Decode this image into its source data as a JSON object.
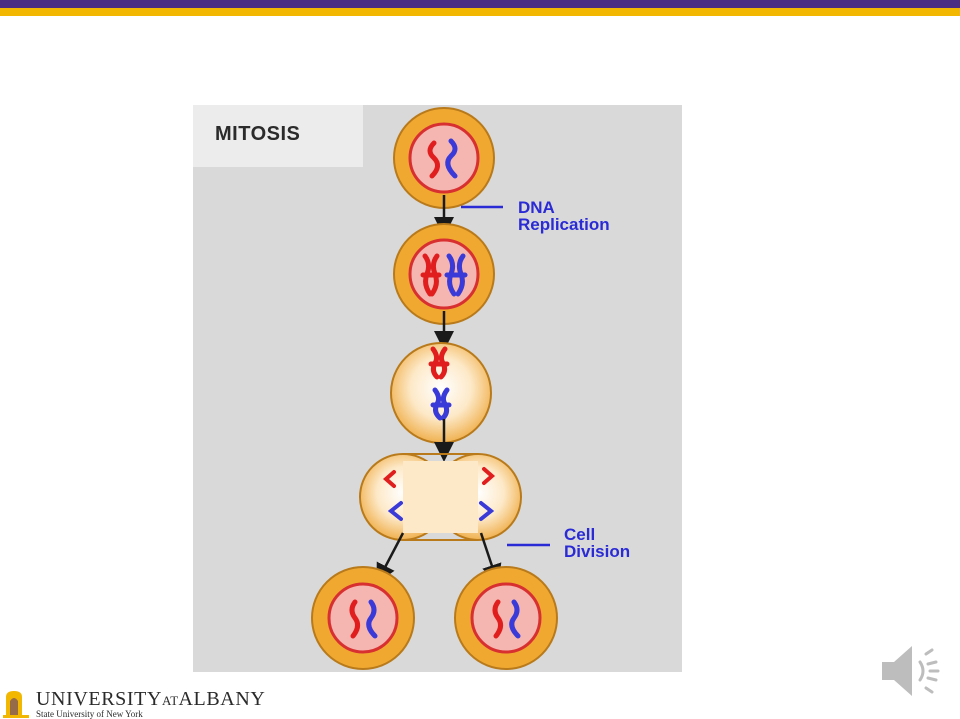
{
  "slide": {
    "accent_colors": {
      "purple": "#4b2e83",
      "gold": "#f2b700"
    }
  },
  "diagram": {
    "title": "MITOSIS",
    "labels": {
      "dna_replication": [
        "DNA",
        "Replication"
      ],
      "cell_division": [
        "Cell",
        "Division"
      ]
    },
    "colors": {
      "cell_outer": "#f0a830",
      "cell_inner": "#f5b5b0",
      "chromosome_red": "#e01e1e",
      "chromosome_blue": "#3a3ad8",
      "label_blue": "#2b2bd6"
    }
  },
  "footer": {
    "university_part1": "UNIVERSITY",
    "university_at": "AT",
    "university_part2": "ALBANY",
    "subtitle": "State University of New York",
    "speaker_icon": "speaker-icon",
    "logo_icon": "minerva-logo-icon"
  }
}
